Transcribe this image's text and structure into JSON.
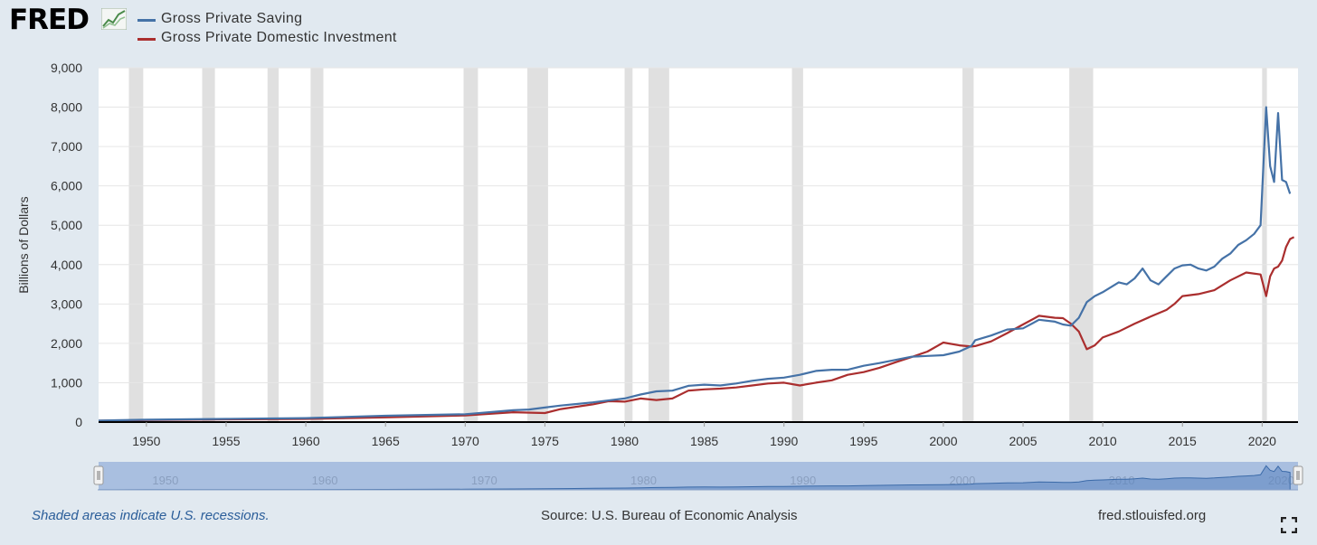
{
  "header": {
    "logo_text": "FRED",
    "logo_icon": "line-chart-icon"
  },
  "footer": {
    "note": "Shaded areas indicate U.S. recessions.",
    "source": "Source: U.S. Bureau of Economic Analysis",
    "url": "fred.stlouisfed.org",
    "fullscreen_icon": "fullscreen-icon"
  },
  "colors": {
    "saving": "#4572a7",
    "investment": "#aa2e2e",
    "recession": "#e0e0e0",
    "navigator": "#a9bfe0",
    "background": "#e1e9f0"
  },
  "chart_data": {
    "type": "line",
    "title": "",
    "xlabel": "",
    "ylabel": "Billions of Dollars",
    "xlim": [
      1947,
      2022.25
    ],
    "ylim": [
      0,
      9000
    ],
    "y_ticks": [
      0,
      1000,
      2000,
      3000,
      4000,
      5000,
      6000,
      7000,
      8000,
      9000
    ],
    "y_tick_labels": [
      "0",
      "1,000",
      "2,000",
      "3,000",
      "4,000",
      "5,000",
      "6,000",
      "7,000",
      "8,000",
      "9,000"
    ],
    "x_ticks": [
      1950,
      1955,
      1960,
      1965,
      1970,
      1975,
      1980,
      1985,
      1990,
      1995,
      2000,
      2005,
      2010,
      2015,
      2020
    ],
    "x_tick_labels": [
      "1950",
      "1955",
      "1960",
      "1965",
      "1970",
      "1975",
      "1980",
      "1985",
      "1990",
      "1995",
      "2000",
      "2005",
      "2010",
      "2015",
      "2020"
    ],
    "grid": true,
    "legend_position": "top-left",
    "recessions": [
      [
        1948.9,
        1949.8
      ],
      [
        1953.5,
        1954.3
      ],
      [
        1957.6,
        1958.3
      ],
      [
        1960.3,
        1961.1
      ],
      [
        1969.9,
        1970.8
      ],
      [
        1973.9,
        1975.2
      ],
      [
        1980.0,
        1980.5
      ],
      [
        1981.5,
        1982.8
      ],
      [
        1990.5,
        1991.2
      ],
      [
        2001.2,
        2001.9
      ],
      [
        2007.9,
        2009.4
      ],
      [
        2020.0,
        2020.3
      ]
    ],
    "series": [
      {
        "name": "Gross Private Saving",
        "color": "#4572a7",
        "x": [
          1947,
          1950,
          1955,
          1960,
          1965,
          1970,
          1973,
          1974,
          1975,
          1976,
          1978,
          1980,
          1981,
          1982,
          1983,
          1984,
          1985,
          1986,
          1987,
          1988,
          1989,
          1990,
          1991,
          1992,
          1993,
          1994,
          1995,
          1996,
          1997,
          1998,
          1999,
          2000,
          2001,
          2001.75,
          2002,
          2003,
          2004,
          2005,
          2006,
          2007,
          2007.5,
          2008,
          2008.5,
          2009,
          2009.5,
          2010,
          2011,
          2011.5,
          2012,
          2012.5,
          2013,
          2013.5,
          2014,
          2014.5,
          2015,
          2015.5,
          2016,
          2016.5,
          2017,
          2017.5,
          2018,
          2018.5,
          2019,
          2019.5,
          2019.9,
          2020.25,
          2020.5,
          2020.75,
          2021,
          2021.25,
          2021.5,
          2021.75
        ],
        "values": [
          40,
          60,
          80,
          100,
          160,
          200,
          300,
          320,
          370,
          420,
          500,
          600,
          700,
          780,
          800,
          920,
          950,
          930,
          980,
          1050,
          1100,
          1130,
          1200,
          1300,
          1330,
          1330,
          1430,
          1500,
          1580,
          1660,
          1680,
          1700,
          1790,
          1930,
          2080,
          2200,
          2350,
          2380,
          2600,
          2550,
          2480,
          2450,
          2650,
          3050,
          3200,
          3300,
          3550,
          3500,
          3650,
          3900,
          3600,
          3500,
          3700,
          3900,
          3980,
          4000,
          3900,
          3850,
          3950,
          4150,
          4280,
          4500,
          4620,
          4780,
          5000,
          8000,
          6500,
          6100,
          7850,
          6150,
          6100,
          5800
        ]
      },
      {
        "name": "Gross Private Domestic Investment",
        "color": "#aa2e2e",
        "x": [
          1947,
          1950,
          1955,
          1960,
          1965,
          1970,
          1973,
          1975,
          1976,
          1978,
          1979,
          1980,
          1981,
          1982,
          1983,
          1984,
          1985,
          1986,
          1987,
          1988,
          1989,
          1990,
          1991,
          1992,
          1993,
          1994,
          1995,
          1996,
          1997,
          1998,
          1999,
          2000,
          2001,
          2001.75,
          2002,
          2003,
          2004,
          2005,
          2006,
          2007,
          2007.5,
          2008,
          2008.5,
          2009,
          2009.5,
          2010,
          2011,
          2012,
          2013,
          2014,
          2014.5,
          2015,
          2016,
          2017,
          2018,
          2019,
          2019.9,
          2020.25,
          2020.5,
          2020.75,
          2021,
          2021.25,
          2021.5,
          2021.75,
          2022
        ],
        "values": [
          35,
          50,
          70,
          80,
          120,
          170,
          250,
          230,
          330,
          450,
          530,
          520,
          600,
          560,
          600,
          800,
          830,
          850,
          880,
          930,
          980,
          1000,
          930,
          1000,
          1060,
          1200,
          1270,
          1380,
          1520,
          1650,
          1790,
          2020,
          1950,
          1920,
          1930,
          2050,
          2260,
          2480,
          2700,
          2650,
          2640,
          2500,
          2300,
          1850,
          1950,
          2150,
          2300,
          2500,
          2680,
          2850,
          3000,
          3200,
          3250,
          3350,
          3600,
          3800,
          3750,
          3200,
          3700,
          3900,
          3950,
          4100,
          4450,
          4650,
          4700
        ]
      }
    ]
  }
}
